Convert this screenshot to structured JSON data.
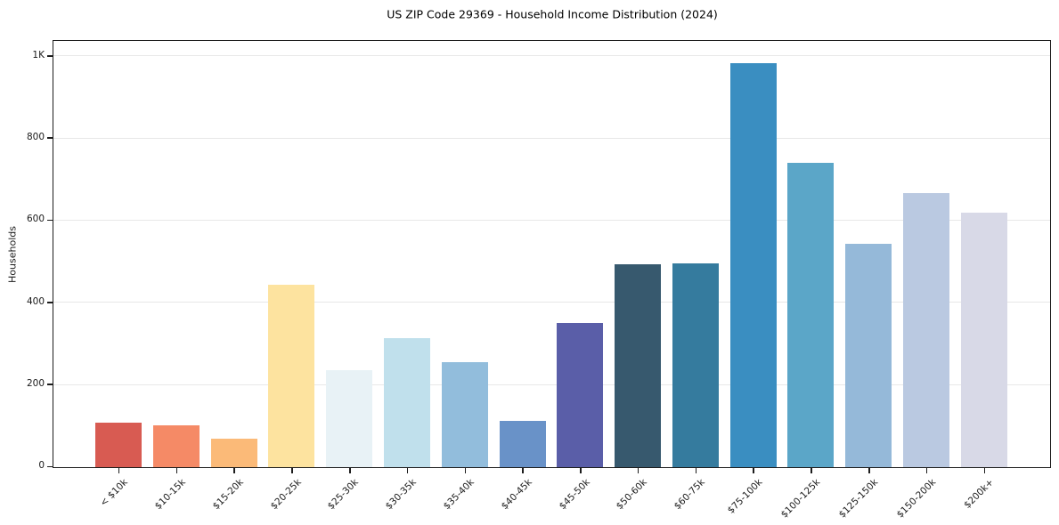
{
  "chart_data": {
    "type": "bar",
    "title": "US ZIP Code 29369 - Household Income Distribution (2024)",
    "xlabel": "",
    "ylabel": "Households",
    "categories": [
      "< $10k",
      "$10-15k",
      "$15-20k",
      "$20-25k",
      "$25-30k",
      "$30-35k",
      "$35-40k",
      "$40-45k",
      "$45-50k",
      "$50-60k",
      "$60-75k",
      "$75-100k",
      "$100-125k",
      "$125-150k",
      "$150-200k",
      "$200k+"
    ],
    "values": [
      108,
      102,
      69,
      444,
      237,
      314,
      255,
      112,
      352,
      494,
      497,
      984,
      740,
      543,
      667,
      620
    ],
    "bar_colors": [
      "#d85b52",
      "#f58a66",
      "#fbba78",
      "#fde39f",
      "#e8f2f6",
      "#c0e0ec",
      "#92bddc",
      "#6992c8",
      "#5a5ea8",
      "#37596e",
      "#357b9e",
      "#3a8ec1",
      "#5ba6c8",
      "#95b9d9",
      "#bac9e1",
      "#d8d9e7"
    ],
    "ylim": [
      0,
      1035
    ],
    "yticks": [
      {
        "value": 0,
        "label": "0"
      },
      {
        "value": 200,
        "label": "200"
      },
      {
        "value": 400,
        "label": "400"
      },
      {
        "value": 600,
        "label": "600"
      },
      {
        "value": 800,
        "label": "800"
      },
      {
        "value": 1000,
        "label": "1K"
      }
    ],
    "grid": "horizontal",
    "gridline_color": "#e8e8e8",
    "spine_color": "#1c1c1c",
    "background": "#ffffff",
    "legend": "none"
  }
}
